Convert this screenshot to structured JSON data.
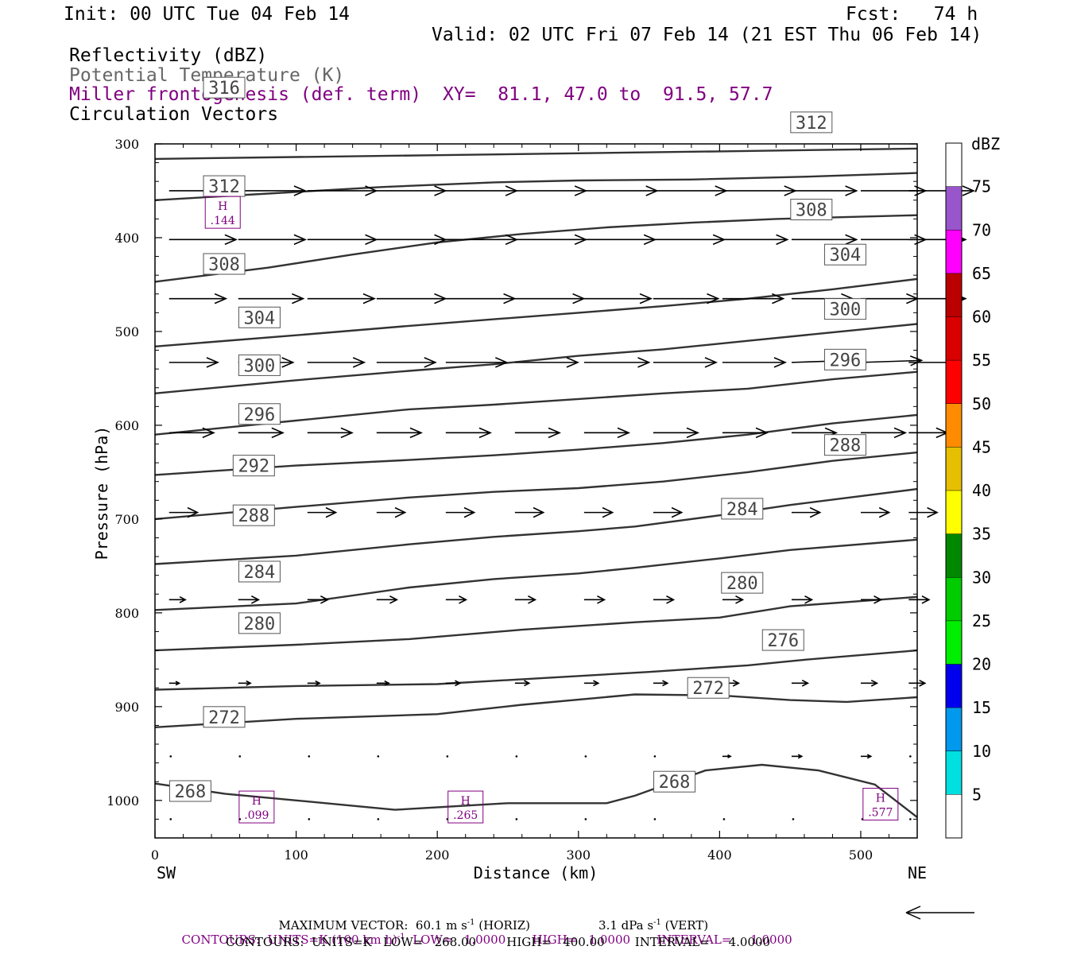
{
  "header": {
    "init": "Init: 00 UTC Tue 04 Feb 14",
    "fcst": "Fcst:   74 h",
    "valid": "Valid: 02 UTC Fri 07 Feb 14 (21 EST Thu 06 Feb 14)",
    "fields": [
      "Reflectivity (dBZ)",
      "Potential Temperature (K)",
      "Miller frontogenesis (def. term)",
      "Circulation Vectors"
    ],
    "xy": "XY=  81.1, 47.0 to  91.5, 57.7"
  },
  "chart_data": {
    "type": "line",
    "xlabel": "Distance (km)",
    "ylabel": "Pressure (hPa)",
    "xlim": [
      0,
      540
    ],
    "ylim": [
      1040,
      300
    ],
    "x_ticks": [
      "0",
      "100",
      "200",
      "300",
      "400",
      "500"
    ],
    "y_ticks": [
      "300",
      "400",
      "500",
      "600",
      "700",
      "800",
      "900",
      "1000"
    ],
    "x_end_labels": {
      "left": "SW",
      "right": "NE"
    },
    "colorbar": {
      "unit": "dBZ",
      "labels": [
        "5",
        "10",
        "15",
        "20",
        "25",
        "30",
        "35",
        "40",
        "45",
        "50",
        "55",
        "60",
        "65",
        "70",
        "75"
      ],
      "colors": [
        "#ffffff",
        "#00e0e0",
        "#0099ee",
        "#0000ee",
        "#00ee00",
        "#00cc00",
        "#008800",
        "#ffff00",
        "#e6c000",
        "#ff8c00",
        "#ff0000",
        "#d90000",
        "#bb0000",
        "#ff00ff",
        "#9955cc",
        "#ffffff"
      ]
    },
    "isentropes": [
      {
        "label": "268",
        "points": [
          [
            0,
            982
          ],
          [
            50,
            993
          ],
          [
            100,
            1000
          ],
          [
            170,
            1010
          ],
          [
            250,
            1003
          ],
          [
            320,
            1003
          ],
          [
            340,
            995
          ],
          [
            390,
            968
          ],
          [
            430,
            962
          ],
          [
            470,
            968
          ],
          [
            510,
            983
          ],
          [
            540,
            1018
          ]
        ],
        "labels": [
          [
            25,
            990
          ],
          [
            368,
            980
          ]
        ]
      },
      {
        "label": "272",
        "points": [
          [
            0,
            922
          ],
          [
            100,
            913
          ],
          [
            200,
            908
          ],
          [
            260,
            898
          ],
          [
            340,
            887
          ],
          [
            400,
            888
          ],
          [
            450,
            893
          ],
          [
            490,
            895
          ],
          [
            540,
            890
          ]
        ],
        "labels": [
          [
            49,
            911
          ],
          [
            392,
            880
          ]
        ]
      },
      {
        "label": "276",
        "points": [
          [
            0,
            882
          ],
          [
            100,
            878
          ],
          [
            200,
            876
          ],
          [
            270,
            870
          ],
          [
            350,
            863
          ],
          [
            420,
            856
          ],
          [
            460,
            850
          ],
          [
            540,
            840
          ]
        ],
        "labels": [
          [
            445,
            829
          ]
        ]
      },
      {
        "label": "280",
        "points": [
          [
            0,
            840
          ],
          [
            100,
            834
          ],
          [
            180,
            828
          ],
          [
            260,
            818
          ],
          [
            340,
            810
          ],
          [
            400,
            805
          ],
          [
            450,
            793
          ],
          [
            540,
            783
          ]
        ],
        "labels": [
          [
            74,
            811
          ],
          [
            416,
            768
          ]
        ]
      },
      {
        "label": "284",
        "points": [
          [
            0,
            797
          ],
          [
            100,
            790
          ],
          [
            180,
            773
          ],
          [
            240,
            764
          ],
          [
            300,
            758
          ],
          [
            340,
            752
          ],
          [
            400,
            742
          ],
          [
            450,
            733
          ],
          [
            540,
            722
          ]
        ],
        "labels": [
          [
            74,
            756
          ],
          [
            416,
            689
          ]
        ]
      },
      {
        "label": "288",
        "points": [
          [
            0,
            748
          ],
          [
            100,
            739
          ],
          [
            180,
            727
          ],
          [
            240,
            719
          ],
          [
            300,
            713
          ],
          [
            340,
            708
          ],
          [
            400,
            696
          ],
          [
            450,
            685
          ],
          [
            540,
            668
          ]
        ],
        "labels": [
          [
            70,
            696
          ],
          [
            489,
            621
          ]
        ]
      },
      {
        "label": "292",
        "points": [
          [
            0,
            700
          ],
          [
            100,
            687
          ],
          [
            180,
            677
          ],
          [
            240,
            671
          ],
          [
            300,
            667
          ],
          [
            360,
            660
          ],
          [
            420,
            650
          ],
          [
            480,
            638
          ],
          [
            540,
            629
          ]
        ],
        "labels": [
          [
            70,
            643
          ]
        ]
      },
      {
        "label": "296",
        "points": [
          [
            0,
            653
          ],
          [
            100,
            643
          ],
          [
            180,
            637
          ],
          [
            240,
            632
          ],
          [
            300,
            626
          ],
          [
            360,
            619
          ],
          [
            420,
            610
          ],
          [
            480,
            598
          ],
          [
            540,
            589
          ]
        ],
        "labels": [
          [
            74,
            588
          ],
          [
            489,
            530
          ]
        ]
      },
      {
        "label": "300",
        "points": [
          [
            0,
            610
          ],
          [
            100,
            595
          ],
          [
            180,
            583
          ],
          [
            240,
            578
          ],
          [
            300,
            572
          ],
          [
            360,
            566
          ],
          [
            420,
            561
          ],
          [
            480,
            551
          ],
          [
            540,
            543
          ]
        ],
        "labels": [
          [
            74,
            536
          ],
          [
            489,
            476
          ]
        ]
      },
      {
        "label": "304",
        "points": [
          [
            0,
            566
          ],
          [
            100,
            552
          ],
          [
            180,
            542
          ],
          [
            240,
            535
          ],
          [
            300,
            526
          ],
          [
            360,
            519
          ],
          [
            420,
            510
          ],
          [
            480,
            501
          ],
          [
            540,
            492
          ]
        ],
        "labels": [
          [
            74,
            485
          ],
          [
            489,
            418
          ]
        ]
      },
      {
        "label": "308",
        "points": [
          [
            0,
            516
          ],
          [
            100,
            504
          ],
          [
            180,
            494
          ],
          [
            240,
            487
          ],
          [
            300,
            480
          ],
          [
            360,
            473
          ],
          [
            420,
            465
          ],
          [
            480,
            455
          ],
          [
            540,
            444
          ]
        ],
        "labels": [
          [
            49,
            428
          ],
          [
            465,
            370
          ]
        ]
      },
      {
        "label": "312",
        "points": [
          [
            0,
            447
          ],
          [
            80,
            432
          ],
          [
            140,
            418
          ],
          [
            200,
            405
          ],
          [
            260,
            396
          ],
          [
            320,
            389
          ],
          [
            380,
            384
          ],
          [
            440,
            380
          ],
          [
            540,
            376
          ]
        ],
        "labels": [
          [
            49,
            345
          ],
          [
            465,
            277
          ]
        ]
      },
      {
        "label": "316",
        "points": [
          [
            0,
            360
          ],
          [
            80,
            353
          ],
          [
            160,
            346
          ],
          [
            240,
            341
          ],
          [
            300,
            339
          ],
          [
            380,
            338
          ],
          [
            460,
            335
          ],
          [
            540,
            331
          ]
        ],
        "labels": [
          [
            49,
            240
          ]
        ]
      },
      {
        "label": "",
        "points": [
          [
            0,
            316
          ],
          [
            100,
            314
          ],
          [
            200,
            312
          ],
          [
            300,
            310
          ],
          [
            400,
            308
          ],
          [
            540,
            305
          ]
        ],
        "labels": []
      }
    ],
    "frontogenesis_maxima": [
      {
        "marker": "H",
        "value": ".144",
        "x": 48,
        "p": 373
      },
      {
        "marker": "H",
        "value": ".099",
        "x": 72,
        "p": 1007
      },
      {
        "marker": "H",
        "value": ".265",
        "x": 220,
        "p": 1007
      },
      {
        "marker": "H",
        "value": ".577",
        "x": 514,
        "p": 1004
      }
    ],
    "vectors": {
      "x_positions": [
        10,
        59,
        108,
        157,
        206,
        255,
        304,
        353,
        402,
        451,
        500,
        534
      ],
      "rows": [
        {
          "p": 350,
          "u": [
            33,
            33,
            34,
            34,
            35,
            35,
            36,
            36,
            36,
            32,
            32,
            32
          ],
          "w": [
            0,
            0,
            0,
            0,
            0,
            0,
            0,
            0,
            0,
            0,
            0,
            0
          ]
        },
        {
          "p": 402,
          "u": [
            33,
            33,
            34,
            34,
            35,
            35,
            35,
            35,
            32,
            32,
            32,
            28
          ],
          "w": [
            0,
            0,
            0,
            0,
            0,
            0,
            0,
            0,
            0,
            0,
            0,
            0
          ]
        },
        {
          "p": 465,
          "u": [
            28,
            32,
            33,
            34,
            34,
            34,
            33,
            32,
            30,
            30,
            28,
            28
          ],
          "w": [
            0,
            0,
            0,
            0,
            0,
            0,
            0,
            0,
            0,
            0,
            0,
            0
          ]
        },
        {
          "p": 533,
          "u": [
            24,
            27,
            28,
            29,
            30,
            31,
            32,
            31,
            31,
            30,
            30,
            24
          ],
          "w": [
            0,
            0,
            0,
            0,
            0,
            0,
            0,
            0,
            0,
            -1,
            -1,
            0
          ]
        },
        {
          "p": 608,
          "u": [
            22,
            22,
            22,
            22,
            22,
            22,
            22,
            22,
            22,
            22,
            22,
            19
          ],
          "w": [
            0,
            0,
            0,
            0,
            0,
            0,
            0,
            0,
            0,
            0,
            0,
            0
          ]
        },
        {
          "p": 693,
          "u": [
            14,
            14,
            14,
            14,
            14,
            14,
            14,
            14,
            14,
            14,
            14,
            14
          ],
          "w": [
            0,
            0,
            0,
            0,
            0,
            0,
            0,
            0,
            0,
            0,
            0,
            0
          ]
        },
        {
          "p": 786,
          "u": [
            8,
            10,
            10,
            10,
            10,
            10,
            10,
            10,
            10,
            10,
            10,
            10
          ],
          "w": [
            0,
            0,
            0,
            0,
            0,
            0,
            0,
            0,
            0,
            0,
            0,
            0
          ]
        },
        {
          "p": 875,
          "u": [
            5,
            6,
            6,
            6,
            7,
            7,
            7,
            7,
            8,
            8,
            8,
            8
          ],
          "w": [
            0,
            0,
            0,
            0,
            0,
            0,
            0,
            0,
            0,
            0,
            0,
            0
          ]
        },
        {
          "p": 953,
          "u": [
            0,
            0,
            0,
            0,
            0,
            0,
            0,
            1,
            4,
            5,
            5,
            0
          ],
          "w": [
            0,
            0,
            0,
            0,
            0,
            0,
            0,
            0,
            0,
            0,
            0,
            0
          ]
        },
        {
          "p": 1020,
          "u": [
            0,
            0,
            0,
            0,
            0,
            0,
            0,
            0,
            1,
            1,
            1,
            0
          ],
          "w": [
            0,
            0,
            0,
            0,
            0,
            0,
            0,
            0,
            0,
            0,
            0,
            0
          ]
        }
      ]
    }
  },
  "footer": {
    "max_vector": "MAXIMUM VECTOR:  60.1 m s",
    "max_vector_horiz": " (HORIZ)",
    "max_vector_vert": "3.1 dPa s",
    "max_vector_vert_suffix": " (VERT)",
    "sup_minus1": "-1",
    "contours_purple_a": "CONTOURS:  UNITS=K (100 km h)",
    "contours_purple_b": "  LOW=   1.0000       HIGH=   1.0000       INTERVAL=     1.0000",
    "contours_black": "CONTOURS:  UNITS=K   LOW=   268.00        HIGH=   400.00        INTERVAL=     4.0000"
  }
}
